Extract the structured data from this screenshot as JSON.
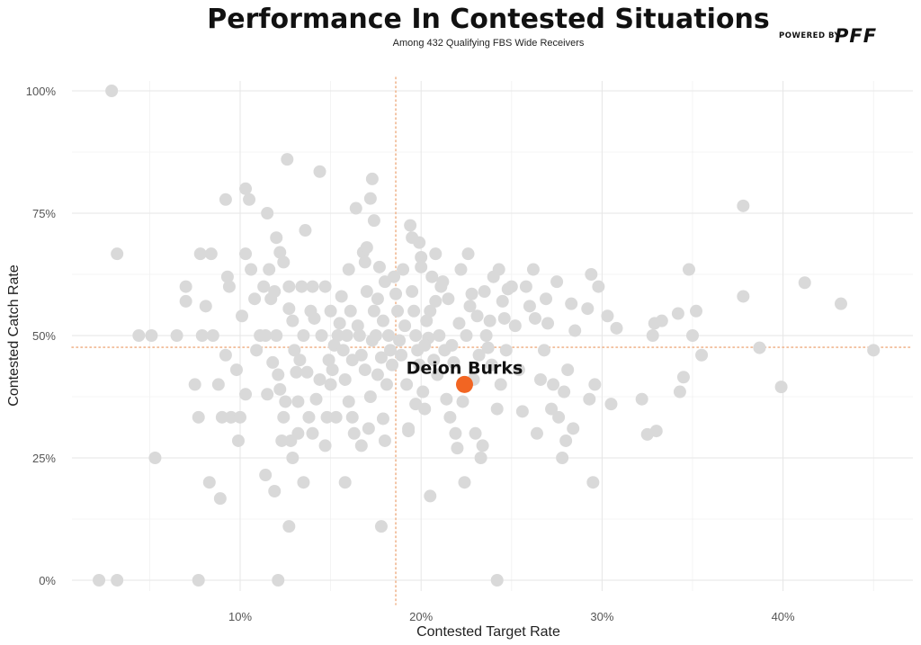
{
  "title": "Performance In Contested Situations",
  "subtitle": "Among 432 Qualifying FBS Wide Receivers",
  "brand": {
    "prefix": "POWERED BY",
    "name": "PFF"
  },
  "colors": {
    "point": "#d9d9d9",
    "highlight": "#f26522",
    "reference_line": "#f0b68f",
    "grid": "#e6e6e6"
  },
  "chart_data": {
    "type": "scatter",
    "title": "Performance In Contested Situations",
    "subtitle": "Among 432 Qualifying FBS Wide Receivers",
    "xlabel": "Contested Target Rate",
    "ylabel": "Contested Catch Rate",
    "xlim": [
      1.5,
      47
    ],
    "ylim": [
      -2,
      104
    ],
    "x_ticks": [
      10,
      20,
      30,
      40
    ],
    "x_tick_labels": [
      "10%",
      "20%",
      "30%",
      "40%"
    ],
    "y_ticks": [
      0,
      25,
      50,
      75,
      100
    ],
    "y_tick_labels": [
      "0%",
      "25%",
      "50%",
      "75%",
      "100%"
    ],
    "grid": true,
    "legend": "none",
    "reference_lines": {
      "x": 18.6,
      "y": 47.6
    },
    "highlight": {
      "label": "Deion Burks",
      "x": 22.4,
      "y": 40
    },
    "series": [
      {
        "points": [
          [
            2.2,
            0
          ],
          [
            3.2,
            0
          ],
          [
            7.7,
            0
          ],
          [
            12.1,
            0
          ],
          [
            24.2,
            0
          ],
          [
            2.9,
            100
          ],
          [
            3.2,
            66.7
          ],
          [
            4.4,
            50
          ],
          [
            5.1,
            50
          ],
          [
            5.3,
            25
          ],
          [
            6.5,
            50
          ],
          [
            7.0,
            60
          ],
          [
            7.0,
            57
          ],
          [
            7.5,
            40
          ],
          [
            7.7,
            33.3
          ],
          [
            7.8,
            66.7
          ],
          [
            7.9,
            50
          ],
          [
            8.1,
            56
          ],
          [
            8.3,
            20
          ],
          [
            8.4,
            66.7
          ],
          [
            8.5,
            50
          ],
          [
            8.8,
            40
          ],
          [
            8.9,
            16.7
          ],
          [
            9.0,
            33.3
          ],
          [
            9.2,
            46
          ],
          [
            9.3,
            62
          ],
          [
            9.4,
            60
          ],
          [
            9.5,
            33.3
          ],
          [
            9.8,
            43
          ],
          [
            9.9,
            28.5
          ],
          [
            10.0,
            33.3
          ],
          [
            10.1,
            54
          ],
          [
            10.3,
            38
          ],
          [
            9.2,
            77.8
          ],
          [
            10.3,
            80
          ],
          [
            10.5,
            77.8
          ],
          [
            10.3,
            66.7
          ],
          [
            10.6,
            63.5
          ],
          [
            10.8,
            57.5
          ],
          [
            10.9,
            47
          ],
          [
            11.1,
            50
          ],
          [
            11.3,
            60
          ],
          [
            11.4,
            50
          ],
          [
            11.5,
            38
          ],
          [
            11.6,
            63.5
          ],
          [
            11.7,
            57.5
          ],
          [
            11.8,
            44.5
          ],
          [
            11.9,
            59
          ],
          [
            12.0,
            50
          ],
          [
            12.1,
            42
          ],
          [
            12.2,
            39
          ],
          [
            12.3,
            28.5
          ],
          [
            12.4,
            33.3
          ],
          [
            12.5,
            36.5
          ],
          [
            11.5,
            75
          ],
          [
            12.7,
            60
          ],
          [
            11.4,
            21.5
          ],
          [
            11.9,
            18.2
          ],
          [
            12.0,
            70
          ],
          [
            12.2,
            67
          ],
          [
            12.4,
            65
          ],
          [
            12.6,
            86
          ],
          [
            12.7,
            55.5
          ],
          [
            12.8,
            28.5
          ],
          [
            12.9,
            53
          ],
          [
            13.0,
            47
          ],
          [
            13.1,
            42.5
          ],
          [
            13.2,
            36.5
          ],
          [
            13.3,
            45
          ],
          [
            13.4,
            60
          ],
          [
            13.5,
            50
          ],
          [
            13.6,
            71.5
          ],
          [
            13.7,
            42.5
          ],
          [
            13.8,
            33.3
          ],
          [
            13.9,
            55
          ],
          [
            14.0,
            30
          ],
          [
            14.1,
            53.5
          ],
          [
            14.2,
            37
          ],
          [
            14.4,
            41
          ],
          [
            14.5,
            50
          ],
          [
            14.7,
            60
          ],
          [
            14.8,
            33.3
          ],
          [
            14.9,
            45
          ],
          [
            15.0,
            40
          ],
          [
            12.7,
            11
          ],
          [
            12.9,
            25
          ],
          [
            13.2,
            30
          ],
          [
            13.5,
            20
          ],
          [
            14.0,
            60
          ],
          [
            14.4,
            83.5
          ],
          [
            14.7,
            27.5
          ],
          [
            15.0,
            55
          ],
          [
            15.1,
            43
          ],
          [
            15.2,
            48
          ],
          [
            15.3,
            33.3
          ],
          [
            15.4,
            50
          ],
          [
            15.5,
            52.5
          ],
          [
            15.6,
            58
          ],
          [
            15.7,
            47
          ],
          [
            15.8,
            41
          ],
          [
            15.9,
            50
          ],
          [
            16.0,
            36.5
          ],
          [
            16.1,
            55
          ],
          [
            16.2,
            45
          ],
          [
            16.3,
            30
          ],
          [
            15.8,
            20
          ],
          [
            16.0,
            63.5
          ],
          [
            16.2,
            33.3
          ],
          [
            16.4,
            76
          ],
          [
            16.5,
            52
          ],
          [
            16.6,
            50
          ],
          [
            16.7,
            46
          ],
          [
            16.8,
            67
          ],
          [
            16.9,
            43
          ],
          [
            17.0,
            59
          ],
          [
            17.1,
            31
          ],
          [
            17.2,
            37.5
          ],
          [
            17.3,
            49
          ],
          [
            17.4,
            55
          ],
          [
            17.5,
            50
          ],
          [
            17.6,
            42
          ],
          [
            17.7,
            64
          ],
          [
            17.8,
            45.5
          ],
          [
            17.9,
            53
          ],
          [
            18.0,
            28.5
          ],
          [
            18.1,
            40
          ],
          [
            16.7,
            27.5
          ],
          [
            16.9,
            65
          ],
          [
            17.0,
            68
          ],
          [
            17.2,
            78
          ],
          [
            17.3,
            82
          ],
          [
            17.4,
            73.5
          ],
          [
            17.6,
            57.5
          ],
          [
            17.8,
            11
          ],
          [
            17.9,
            33
          ],
          [
            18.0,
            61
          ],
          [
            18.2,
            50
          ],
          [
            18.3,
            47
          ],
          [
            18.4,
            44
          ],
          [
            18.5,
            62
          ],
          [
            18.6,
            58.5
          ],
          [
            18.7,
            55
          ],
          [
            18.8,
            49
          ],
          [
            18.9,
            46
          ],
          [
            19.0,
            63.5
          ],
          [
            19.1,
            52
          ],
          [
            19.2,
            40
          ],
          [
            19.3,
            31
          ],
          [
            19.4,
            72.5
          ],
          [
            19.5,
            59
          ],
          [
            19.6,
            55
          ],
          [
            19.7,
            50
          ],
          [
            19.8,
            47
          ],
          [
            19.9,
            44
          ],
          [
            20.0,
            66
          ],
          [
            20.1,
            38.5
          ],
          [
            20.2,
            35
          ],
          [
            20.3,
            53
          ],
          [
            20.4,
            49.5
          ],
          [
            20.5,
            17.2
          ],
          [
            20.6,
            62
          ],
          [
            20.7,
            45
          ],
          [
            20.8,
            57
          ],
          [
            20.9,
            42
          ],
          [
            21.0,
            50
          ],
          [
            21.1,
            60
          ],
          [
            19.3,
            30.5
          ],
          [
            19.5,
            70
          ],
          [
            19.7,
            36
          ],
          [
            19.9,
            69
          ],
          [
            20.0,
            64
          ],
          [
            20.2,
            48
          ],
          [
            20.5,
            55
          ],
          [
            20.8,
            66.7
          ],
          [
            21.2,
            61
          ],
          [
            21.3,
            47
          ],
          [
            21.4,
            37
          ],
          [
            21.5,
            57.5
          ],
          [
            21.6,
            33.3
          ],
          [
            21.7,
            48
          ],
          [
            21.8,
            44.5
          ],
          [
            21.9,
            30
          ],
          [
            22.0,
            27
          ],
          [
            22.1,
            52.5
          ],
          [
            22.2,
            63.5
          ],
          [
            22.3,
            36.5
          ],
          [
            22.4,
            20
          ],
          [
            22.5,
            50
          ],
          [
            22.6,
            66.7
          ],
          [
            22.7,
            56
          ],
          [
            22.8,
            58.5
          ],
          [
            22.9,
            41
          ],
          [
            23.0,
            30
          ],
          [
            23.1,
            54
          ],
          [
            23.2,
            46
          ],
          [
            23.3,
            25
          ],
          [
            23.4,
            27.5
          ],
          [
            23.5,
            59
          ],
          [
            23.6,
            50
          ],
          [
            23.7,
            47.5
          ],
          [
            23.8,
            53
          ],
          [
            23.9,
            44
          ],
          [
            24.0,
            62
          ],
          [
            24.2,
            35
          ],
          [
            24.3,
            63.5
          ],
          [
            24.4,
            40
          ],
          [
            24.5,
            57
          ],
          [
            24.6,
            53.5
          ],
          [
            24.7,
            47
          ],
          [
            24.8,
            59.5
          ],
          [
            25.0,
            60
          ],
          [
            25.2,
            52
          ],
          [
            25.4,
            43
          ],
          [
            25.6,
            34.5
          ],
          [
            25.8,
            60
          ],
          [
            26.0,
            56
          ],
          [
            26.2,
            63.5
          ],
          [
            26.3,
            53.5
          ],
          [
            26.4,
            30
          ],
          [
            26.6,
            41
          ],
          [
            26.8,
            47
          ],
          [
            26.9,
            57.5
          ],
          [
            27.0,
            52.5
          ],
          [
            27.2,
            35
          ],
          [
            27.3,
            40
          ],
          [
            27.5,
            61
          ],
          [
            27.6,
            33.3
          ],
          [
            27.8,
            25
          ],
          [
            27.9,
            38.5
          ],
          [
            28.0,
            28.5
          ],
          [
            28.1,
            43
          ],
          [
            28.3,
            56.5
          ],
          [
            28.4,
            31
          ],
          [
            28.5,
            51
          ],
          [
            29.2,
            55.5
          ],
          [
            29.3,
            37
          ],
          [
            29.4,
            62.5
          ],
          [
            29.5,
            20
          ],
          [
            29.6,
            40
          ],
          [
            29.8,
            60
          ],
          [
            30.3,
            54
          ],
          [
            30.5,
            36
          ],
          [
            30.8,
            51.5
          ],
          [
            32.2,
            37
          ],
          [
            32.5,
            29.8
          ],
          [
            32.8,
            50
          ],
          [
            32.9,
            52.5
          ],
          [
            33.0,
            30.5
          ],
          [
            33.3,
            53
          ],
          [
            34.2,
            54.5
          ],
          [
            34.3,
            38.5
          ],
          [
            34.5,
            41.5
          ],
          [
            34.8,
            63.5
          ],
          [
            35.0,
            50
          ],
          [
            35.2,
            55
          ],
          [
            35.5,
            46
          ],
          [
            37.8,
            58
          ],
          [
            37.8,
            76.5
          ],
          [
            38.7,
            47.5
          ],
          [
            39.9,
            39.5
          ],
          [
            41.2,
            60.8
          ],
          [
            43.2,
            56.5
          ],
          [
            45.0,
            47
          ]
        ]
      }
    ]
  }
}
